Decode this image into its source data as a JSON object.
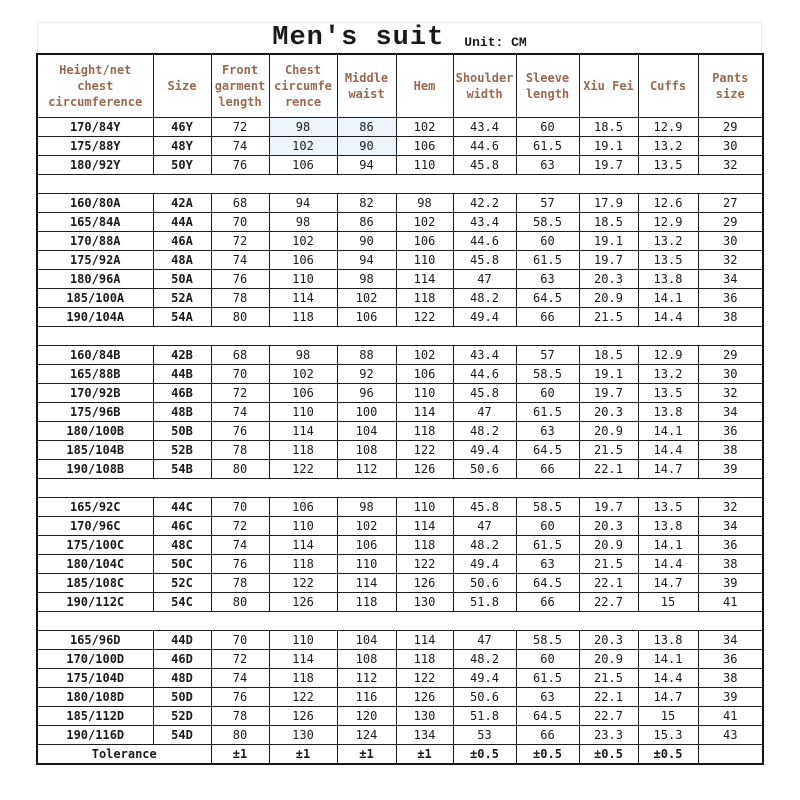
{
  "chart_data": {
    "type": "table",
    "title": "Men's suit",
    "unit_label": "Unit: CM",
    "columns": [
      "Height/net chest circumference",
      "Size",
      "Front garment length",
      "Chest circumfe rence",
      "Middle waist",
      "Hem",
      "Shoulder width",
      "Sleeve length",
      "Xiu Fei",
      "Cuffs",
      "Pants size"
    ],
    "groups": [
      {
        "name": "Y",
        "rows": [
          [
            "170/84Y",
            "46Y",
            "72",
            "98",
            "86",
            "102",
            "43.4",
            "60",
            "18.5",
            "12.9",
            "29"
          ],
          [
            "175/88Y",
            "48Y",
            "74",
            "102",
            "90",
            "106",
            "44.6",
            "61.5",
            "19.1",
            "13.2",
            "30"
          ],
          [
            "180/92Y",
            "50Y",
            "76",
            "106",
            "94",
            "110",
            "45.8",
            "63",
            "19.7",
            "13.5",
            "32"
          ]
        ]
      },
      {
        "name": "A",
        "rows": [
          [
            "160/80A",
            "42A",
            "68",
            "94",
            "82",
            "98",
            "42.2",
            "57",
            "17.9",
            "12.6",
            "27"
          ],
          [
            "165/84A",
            "44A",
            "70",
            "98",
            "86",
            "102",
            "43.4",
            "58.5",
            "18.5",
            "12.9",
            "29"
          ],
          [
            "170/88A",
            "46A",
            "72",
            "102",
            "90",
            "106",
            "44.6",
            "60",
            "19.1",
            "13.2",
            "30"
          ],
          [
            "175/92A",
            "48A",
            "74",
            "106",
            "94",
            "110",
            "45.8",
            "61.5",
            "19.7",
            "13.5",
            "32"
          ],
          [
            "180/96A",
            "50A",
            "76",
            "110",
            "98",
            "114",
            "47",
            "63",
            "20.3",
            "13.8",
            "34"
          ],
          [
            "185/100A",
            "52A",
            "78",
            "114",
            "102",
            "118",
            "48.2",
            "64.5",
            "20.9",
            "14.1",
            "36"
          ],
          [
            "190/104A",
            "54A",
            "80",
            "118",
            "106",
            "122",
            "49.4",
            "66",
            "21.5",
            "14.4",
            "38"
          ]
        ]
      },
      {
        "name": "B",
        "rows": [
          [
            "160/84B",
            "42B",
            "68",
            "98",
            "88",
            "102",
            "43.4",
            "57",
            "18.5",
            "12.9",
            "29"
          ],
          [
            "165/88B",
            "44B",
            "70",
            "102",
            "92",
            "106",
            "44.6",
            "58.5",
            "19.1",
            "13.2",
            "30"
          ],
          [
            "170/92B",
            "46B",
            "72",
            "106",
            "96",
            "110",
            "45.8",
            "60",
            "19.7",
            "13.5",
            "32"
          ],
          [
            "175/96B",
            "48B",
            "74",
            "110",
            "100",
            "114",
            "47",
            "61.5",
            "20.3",
            "13.8",
            "34"
          ],
          [
            "180/100B",
            "50B",
            "76",
            "114",
            "104",
            "118",
            "48.2",
            "63",
            "20.9",
            "14.1",
            "36"
          ],
          [
            "185/104B",
            "52B",
            "78",
            "118",
            "108",
            "122",
            "49.4",
            "64.5",
            "21.5",
            "14.4",
            "38"
          ],
          [
            "190/108B",
            "54B",
            "80",
            "122",
            "112",
            "126",
            "50.6",
            "66",
            "22.1",
            "14.7",
            "39"
          ]
        ]
      },
      {
        "name": "C",
        "rows": [
          [
            "165/92C",
            "44C",
            "70",
            "106",
            "98",
            "110",
            "45.8",
            "58.5",
            "19.7",
            "13.5",
            "32"
          ],
          [
            "170/96C",
            "46C",
            "72",
            "110",
            "102",
            "114",
            "47",
            "60",
            "20.3",
            "13.8",
            "34"
          ],
          [
            "175/100C",
            "48C",
            "74",
            "114",
            "106",
            "118",
            "48.2",
            "61.5",
            "20.9",
            "14.1",
            "36"
          ],
          [
            "180/104C",
            "50C",
            "76",
            "118",
            "110",
            "122",
            "49.4",
            "63",
            "21.5",
            "14.4",
            "38"
          ],
          [
            "185/108C",
            "52C",
            "78",
            "122",
            "114",
            "126",
            "50.6",
            "64.5",
            "22.1",
            "14.7",
            "39"
          ],
          [
            "190/112C",
            "54C",
            "80",
            "126",
            "118",
            "130",
            "51.8",
            "66",
            "22.7",
            "15",
            "41"
          ]
        ]
      },
      {
        "name": "D",
        "rows": [
          [
            "165/96D",
            "44D",
            "70",
            "110",
            "104",
            "114",
            "47",
            "58.5",
            "20.3",
            "13.8",
            "34"
          ],
          [
            "170/100D",
            "46D",
            "72",
            "114",
            "108",
            "118",
            "48.2",
            "60",
            "20.9",
            "14.1",
            "36"
          ],
          [
            "175/104D",
            "48D",
            "74",
            "118",
            "112",
            "122",
            "49.4",
            "61.5",
            "21.5",
            "14.4",
            "38"
          ],
          [
            "180/108D",
            "50D",
            "76",
            "122",
            "116",
            "126",
            "50.6",
            "63",
            "22.1",
            "14.7",
            "39"
          ],
          [
            "185/112D",
            "52D",
            "78",
            "126",
            "120",
            "130",
            "51.8",
            "64.5",
            "22.7",
            "15",
            "41"
          ],
          [
            "190/116D",
            "54D",
            "80",
            "130",
            "124",
            "134",
            "53",
            "66",
            "23.3",
            "15.3",
            "43"
          ]
        ]
      }
    ],
    "tolerance": {
      "label": "Tolerance",
      "values": [
        "±1",
        "±1",
        "±1",
        "±1",
        "±0.5",
        "±0.5",
        "±0.5",
        "±0.5",
        ""
      ]
    },
    "highlight": {
      "group_index": 0,
      "row_indexes": [
        0,
        1
      ],
      "column_indexes": [
        3,
        4
      ]
    }
  },
  "colors": {
    "header_text": "#9a6850",
    "row_label_text": "#b5722c",
    "data_text": "#1a1a1a",
    "grid_line": "#1c1c1c",
    "highlight_fill": "#eef4fb",
    "title_box_border": "#ececec"
  }
}
